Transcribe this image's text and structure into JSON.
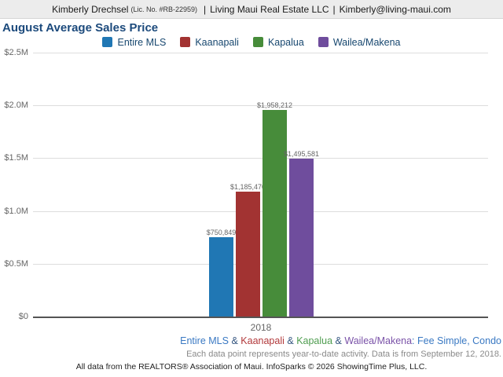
{
  "header": {
    "name": "Kimberly Drechsel",
    "license": "(Lic. No. #RB-22959)",
    "separator": "|",
    "company": "Living Maui Real Estate LLC",
    "email": "Kimberly@living-maui.com"
  },
  "title": "August Average Sales Price",
  "chart_data": {
    "type": "bar",
    "title": "August Average Sales Price",
    "categories": [
      "2018"
    ],
    "series": [
      {
        "name": "Entire MLS",
        "color": "#2077b4",
        "values": [
          750849
        ],
        "value_label": "$750,849"
      },
      {
        "name": "Kaanapali",
        "color": "#a23332",
        "values": [
          1185470
        ],
        "value_label": "$1,185,470"
      },
      {
        "name": "Kapalua",
        "color": "#478c3a",
        "values": [
          1958212
        ],
        "value_label": "$1,958,212"
      },
      {
        "name": "Wailea/Makena",
        "color": "#6f4d9d",
        "values": [
          1495581
        ],
        "value_label": "$1,495,581"
      }
    ],
    "ylim": [
      0,
      2500000
    ],
    "yticks": [
      {
        "label": "$2.5M",
        "value": 2500000
      },
      {
        "label": "$2.0M",
        "value": 2000000
      },
      {
        "label": "$1.5M",
        "value": 1500000
      },
      {
        "label": "$1.0M",
        "value": 1000000
      },
      {
        "label": "$0.5M",
        "value": 500000
      },
      {
        "label": "$0",
        "value": 0
      }
    ],
    "xlabel": "2018",
    "grid": true,
    "legend_position": "top"
  },
  "footnotes": {
    "filter_parts": [
      {
        "text": "Entire MLS",
        "color": "#3a79c3"
      },
      {
        "text": " & ",
        "color": "#33557f"
      },
      {
        "text": "Kaanapali",
        "color": "#b2393b"
      },
      {
        "text": " & ",
        "color": "#33557f"
      },
      {
        "text": "Kapalua",
        "color": "#4f9d50"
      },
      {
        "text": " & ",
        "color": "#33557f"
      },
      {
        "text": "Wailea/Makena",
        "color": "#7a52a8"
      },
      {
        "text": ": Fee Simple, Condo",
        "color": "#3a79c3"
      }
    ],
    "data_note": "Each data point represents year-to-date activity. Data is from September 12, 2018.",
    "attribution": "All data from the REALTORS® Association of Maui. InfoSparks © 2026 ShowingTime Plus, LLC."
  }
}
